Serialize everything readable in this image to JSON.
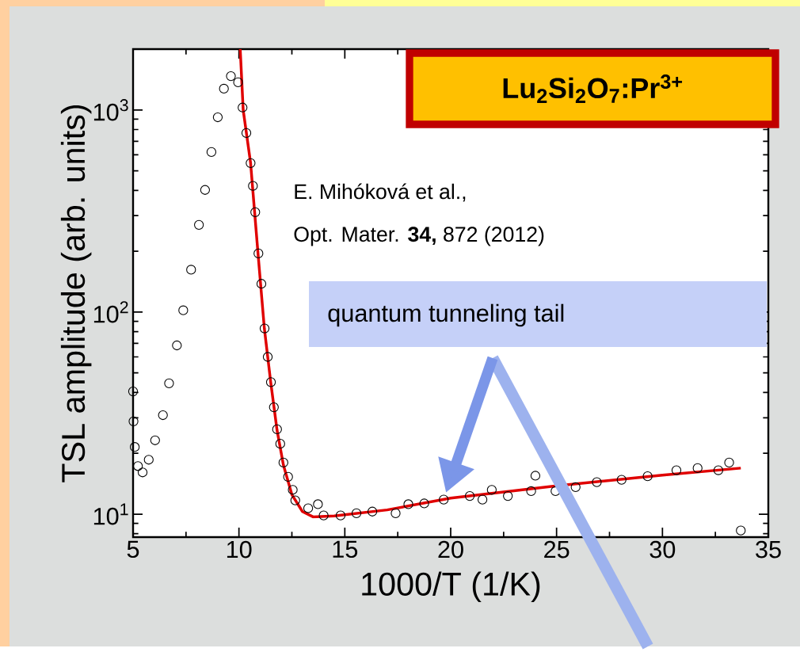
{
  "chart_data": {
    "type": "scatter",
    "xlabel": "1000/T (1/K)",
    "ylabel": "TSL amplitude (arb. units)",
    "log": "y",
    "grid": false,
    "marker": "circle",
    "xlim": [
      5,
      35
    ],
    "ylim": [
      7.7,
      2000
    ],
    "xticks": [
      5,
      10,
      15,
      20,
      25,
      30,
      35
    ],
    "yticks": [
      {
        "value": 10,
        "label": "10$^{1}$"
      },
      {
        "value": 100,
        "label": "10$^{2}$"
      },
      {
        "value": 1000,
        "label": "10$^{3}$"
      }
    ],
    "annotations": [
      "Lu$_{2}$Si$_{2}$O$_{7}$:Pr$^{3+}$",
      "E. Mihóková et al.,",
      "Opt. Mater. **34,** 872 (2012)",
      "quantum tunneling tail"
    ],
    "series": [
      {
        "color": "#000000",
        "x": [
          5.0,
          5.02,
          5.08,
          5.23,
          5.45,
          5.74,
          6.04,
          6.41,
          6.7,
          7.07,
          7.37,
          7.74,
          8.11,
          8.4,
          8.7,
          9.0,
          9.29,
          9.62,
          9.96,
          10.17,
          10.35,
          10.55,
          10.66,
          10.77,
          10.92,
          11.06,
          11.21,
          11.36,
          11.51,
          11.65,
          11.8,
          11.95,
          12.1,
          12.32,
          12.54,
          12.66,
          13.27,
          13.73,
          14.0,
          14.8,
          15.55,
          16.3,
          17.4,
          18.0,
          18.75,
          19.67,
          20.9,
          21.5,
          21.94,
          22.7,
          23.8,
          24.0,
          24.95,
          25.9,
          26.9,
          28.07,
          29.3,
          30.66,
          31.66,
          32.64,
          33.15,
          33.7
        ],
        "values": [
          40.5,
          28.8,
          21.5,
          17.3,
          16.1,
          18.6,
          23.2,
          30.9,
          44.4,
          68.4,
          102,
          162,
          270,
          402,
          619,
          920,
          1274,
          1470,
          1370,
          1028,
          769,
          546,
          421,
          312,
          195,
          138,
          83,
          60,
          45,
          33.8,
          26.3,
          22.3,
          18.0,
          15.3,
          13.2,
          11.7,
          10.7,
          11.2,
          9.85,
          9.85,
          10.1,
          10.3,
          10.1,
          11.2,
          11.3,
          11.8,
          12.3,
          11.8,
          13.2,
          12.3,
          13.0,
          15.5,
          13.0,
          13.6,
          14.4,
          14.8,
          15.4,
          16.5,
          16.9,
          16.5,
          18.0,
          8.3
        ]
      },
      {
        "type": "line",
        "marker": "none",
        "color": "#e00000",
        "x": [
          10.06,
          10.2,
          10.55,
          10.9,
          11.2,
          11.5,
          11.8,
          12.1,
          12.5,
          13.0,
          13.5,
          14.5,
          17.0,
          20.0,
          25.0,
          30.0,
          33.7
        ],
        "values": [
          2000,
          1000,
          546,
          195,
          83,
          45,
          26,
          17.5,
          12.5,
          10.3,
          9.7,
          9.8,
          10.5,
          12.0,
          13.8,
          15.6,
          16.9
        ]
      }
    ]
  }
}
